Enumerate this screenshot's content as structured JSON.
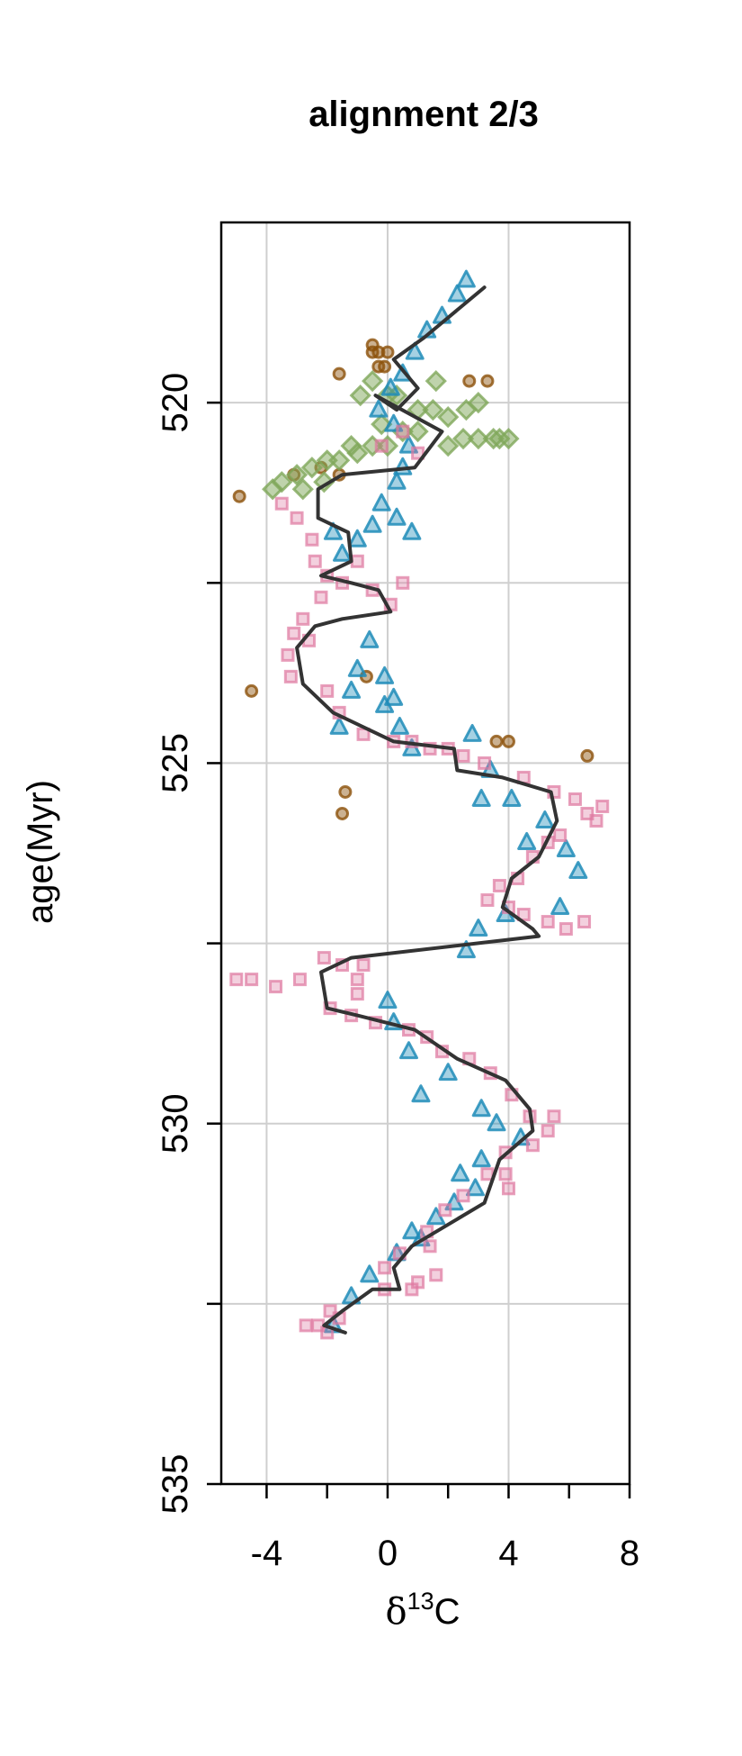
{
  "chart_data": {
    "type": "scatter",
    "title": "alignment 2/3",
    "xlabel": {
      "prefix": "δ",
      "superscript": "13",
      "suffix": "C"
    },
    "ylabel": "age(Myr)",
    "xlim": [
      -5.5,
      8
    ],
    "ylim": [
      517.5,
      535
    ],
    "y_reversed": true,
    "grid": true,
    "x_ticks": [
      -4,
      -2,
      0,
      2,
      4,
      6,
      8
    ],
    "x_tick_labels": [
      {
        "value": -4,
        "label": "-4"
      },
      {
        "value": 0,
        "label": "0"
      },
      {
        "value": 4,
        "label": "4"
      },
      {
        "value": 8,
        "label": "8"
      }
    ],
    "x_grid": [
      -4,
      0,
      4
    ],
    "y_ticks": [
      520,
      522.5,
      525,
      527.5,
      530,
      532.5,
      535
    ],
    "y_tick_labels": [
      {
        "value": 520,
        "label": "520"
      },
      {
        "value": 525,
        "label": "525"
      },
      {
        "value": 530,
        "label": "530"
      },
      {
        "value": 535,
        "label": "535"
      }
    ],
    "y_grid": [
      520,
      522.5,
      525,
      527.5,
      530,
      532.5
    ],
    "series": [
      {
        "marker": "circle",
        "color": "#8c510a",
        "points": [
          [
            -1.6,
            519.6
          ],
          [
            -0.5,
            519.3
          ],
          [
            -0.3,
            519.3
          ],
          [
            0,
            519.3
          ],
          [
            -0.1,
            519.5
          ],
          [
            -0.3,
            519.5
          ],
          [
            -0.5,
            519.2
          ],
          [
            2.7,
            519.7
          ],
          [
            3.3,
            519.7
          ],
          [
            -4.9,
            521.3
          ],
          [
            -3.1,
            521.0
          ],
          [
            -4.5,
            524.0
          ],
          [
            -1.4,
            525.4
          ],
          [
            -1.5,
            525.7
          ],
          [
            3.6,
            524.7
          ],
          [
            4.0,
            524.7
          ],
          [
            6.6,
            524.9
          ],
          [
            -0.7,
            523.8
          ],
          [
            -2.2,
            520.9
          ],
          [
            -1.6,
            521.0
          ]
        ]
      },
      {
        "marker": "diamond",
        "color": "#7fa85a",
        "points": [
          [
            -0.5,
            519.7
          ],
          [
            0,
            519.9
          ],
          [
            1.0,
            520.1
          ],
          [
            1.5,
            520.1
          ],
          [
            2.0,
            520.2
          ],
          [
            2.6,
            520.1
          ],
          [
            3.0,
            520.0
          ],
          [
            -0.2,
            520.3
          ],
          [
            0.5,
            520.4
          ],
          [
            1.0,
            520.4
          ],
          [
            2.0,
            520.6
          ],
          [
            2.5,
            520.5
          ],
          [
            3.0,
            520.5
          ],
          [
            3.5,
            520.5
          ],
          [
            3.7,
            520.5
          ],
          [
            4.0,
            520.5
          ],
          [
            -1.0,
            520.7
          ],
          [
            -0.5,
            520.6
          ],
          [
            0,
            520.6
          ],
          [
            -3.8,
            521.2
          ],
          [
            -3.5,
            521.1
          ],
          [
            -3,
            521.0
          ],
          [
            -2.5,
            520.9
          ],
          [
            -2,
            520.8
          ],
          [
            -1.6,
            520.8
          ],
          [
            -1.2,
            520.6
          ],
          [
            -0.9,
            519.9
          ],
          [
            0.3,
            519.9
          ],
          [
            1.6,
            519.7
          ],
          [
            -2.8,
            521.2
          ],
          [
            -2.1,
            521.1
          ]
        ]
      },
      {
        "marker": "triangle",
        "color": "#1f8cb8",
        "points": [
          [
            2.6,
            518.3
          ],
          [
            2.3,
            518.5
          ],
          [
            1.8,
            518.8
          ],
          [
            1.3,
            519.0
          ],
          [
            0.9,
            519.3
          ],
          [
            0.5,
            519.6
          ],
          [
            0.1,
            519.8
          ],
          [
            -0.3,
            520.1
          ],
          [
            0.2,
            520.3
          ],
          [
            0.7,
            520.6
          ],
          [
            0.5,
            520.9
          ],
          [
            0.3,
            521.1
          ],
          [
            -0.2,
            521.4
          ],
          [
            -0.5,
            521.7
          ],
          [
            -1.0,
            521.9
          ],
          [
            0.3,
            521.6
          ],
          [
            0.8,
            521.8
          ],
          [
            -1.5,
            522.1
          ],
          [
            -1.8,
            521.8
          ],
          [
            -0.6,
            523.3
          ],
          [
            -1.0,
            523.7
          ],
          [
            -1.2,
            524.0
          ],
          [
            -1.6,
            524.5
          ],
          [
            -0.1,
            523.8
          ],
          [
            0.2,
            524.1
          ],
          [
            0.4,
            524.5
          ],
          [
            0.8,
            524.8
          ],
          [
            -0.1,
            524.2
          ],
          [
            2.8,
            524.6
          ],
          [
            3.4,
            525.1
          ],
          [
            4.1,
            525.5
          ],
          [
            3.1,
            525.5
          ],
          [
            5.2,
            525.8
          ],
          [
            5.9,
            526.2
          ],
          [
            6.3,
            526.5
          ],
          [
            4.6,
            526.1
          ],
          [
            3.9,
            527.1
          ],
          [
            3.0,
            527.3
          ],
          [
            2.6,
            527.6
          ],
          [
            5.7,
            527.0
          ],
          [
            0.0,
            528.3
          ],
          [
            0.2,
            528.6
          ],
          [
            0.7,
            529.0
          ],
          [
            1.1,
            529.6
          ],
          [
            2.0,
            529.3
          ],
          [
            3.1,
            529.8
          ],
          [
            3.6,
            530.0
          ],
          [
            4.4,
            530.2
          ],
          [
            3.1,
            530.5
          ],
          [
            2.4,
            530.7
          ],
          [
            2.9,
            530.9
          ],
          [
            2.2,
            531.1
          ],
          [
            1.6,
            531.3
          ],
          [
            1.1,
            531.6
          ],
          [
            -0.6,
            532.1
          ],
          [
            -1.2,
            532.4
          ],
          [
            -1.8,
            532.8
          ],
          [
            0.3,
            531.8
          ],
          [
            0.8,
            531.5
          ]
        ]
      },
      {
        "marker": "square",
        "color": "#de77a0",
        "points": [
          [
            0.5,
            520.4
          ],
          [
            1.0,
            520.7
          ],
          [
            -0.2,
            520.6
          ],
          [
            -3.5,
            521.4
          ],
          [
            -3.0,
            521.6
          ],
          [
            -2.5,
            521.9
          ],
          [
            -1.0,
            522.2
          ],
          [
            -2.4,
            522.2
          ],
          [
            -2.0,
            522.4
          ],
          [
            -1.5,
            522.5
          ],
          [
            -0.5,
            522.6
          ],
          [
            0.1,
            522.8
          ],
          [
            0.5,
            522.5
          ],
          [
            -2.2,
            522.7
          ],
          [
            -2.8,
            523.0
          ],
          [
            -3.1,
            523.2
          ],
          [
            -3.3,
            523.5
          ],
          [
            -3.2,
            523.8
          ],
          [
            -2.6,
            523.3
          ],
          [
            -2.0,
            524.0
          ],
          [
            -1.6,
            524.3
          ],
          [
            -0.8,
            524.6
          ],
          [
            0.2,
            524.7
          ],
          [
            0.8,
            524.7
          ],
          [
            1.4,
            524.8
          ],
          [
            2.0,
            524.8
          ],
          [
            2.5,
            524.9
          ],
          [
            3.2,
            525.0
          ],
          [
            4.5,
            525.2
          ],
          [
            5.5,
            525.4
          ],
          [
            6.2,
            525.5
          ],
          [
            6.6,
            525.7
          ],
          [
            7.1,
            525.6
          ],
          [
            6.9,
            525.8
          ],
          [
            5.7,
            526.0
          ],
          [
            5.3,
            526.1
          ],
          [
            4.8,
            526.3
          ],
          [
            4.3,
            526.6
          ],
          [
            3.3,
            526.9
          ],
          [
            3.7,
            526.7
          ],
          [
            4.0,
            527.0
          ],
          [
            4.5,
            527.1
          ],
          [
            5.3,
            527.2
          ],
          [
            5.9,
            527.3
          ],
          [
            6.5,
            527.2
          ],
          [
            -2.1,
            527.7
          ],
          [
            -1.5,
            527.8
          ],
          [
            -0.8,
            527.8
          ],
          [
            -1.0,
            528.0
          ],
          [
            -1.0,
            528.2
          ],
          [
            -5.0,
            528.0
          ],
          [
            -4.5,
            528.0
          ],
          [
            -3.7,
            528.1
          ],
          [
            -2.9,
            528.0
          ],
          [
            -1.9,
            528.4
          ],
          [
            -1.2,
            528.5
          ],
          [
            -0.4,
            528.6
          ],
          [
            0.7,
            528.7
          ],
          [
            1.3,
            528.8
          ],
          [
            1.8,
            529.0
          ],
          [
            2.7,
            529.1
          ],
          [
            3.4,
            529.3
          ],
          [
            4.1,
            529.6
          ],
          [
            4.7,
            529.9
          ],
          [
            5.5,
            529.9
          ],
          [
            5.3,
            530.1
          ],
          [
            4.8,
            530.3
          ],
          [
            3.9,
            530.4
          ],
          [
            3.3,
            530.7
          ],
          [
            3.9,
            530.7
          ],
          [
            4.0,
            530.9
          ],
          [
            2.5,
            531.0
          ],
          [
            1.9,
            531.2
          ],
          [
            1.3,
            531.5
          ],
          [
            1.4,
            531.7
          ],
          [
            0.4,
            531.8
          ],
          [
            -0.1,
            532.0
          ],
          [
            -0.1,
            532.3
          ],
          [
            0.8,
            532.3
          ],
          [
            1.0,
            532.2
          ],
          [
            1.6,
            532.1
          ],
          [
            -1.6,
            532.7
          ],
          [
            -2.3,
            532.8
          ],
          [
            -2.7,
            532.8
          ],
          [
            -1.9,
            532.6
          ],
          [
            -2.0,
            532.9
          ]
        ]
      },
      {
        "marker": "line",
        "color": "#333333",
        "points": [
          [
            3.2,
            518.4
          ],
          [
            1.2,
            519.1
          ],
          [
            0.2,
            519.4
          ],
          [
            1.0,
            519.8
          ],
          [
            0.3,
            520.1
          ],
          [
            -0.4,
            519.9
          ],
          [
            1.8,
            520.4
          ],
          [
            0.9,
            520.9
          ],
          [
            -1.5,
            521.0
          ],
          [
            -2.3,
            521.2
          ],
          [
            -2.3,
            521.6
          ],
          [
            -1.3,
            521.8
          ],
          [
            -1.2,
            522.2
          ],
          [
            -2.2,
            522.4
          ],
          [
            -1.2,
            522.5
          ],
          [
            -0.3,
            522.6
          ],
          [
            0.1,
            522.9
          ],
          [
            -1.5,
            523.0
          ],
          [
            -2.4,
            523.1
          ],
          [
            -3.0,
            523.4
          ],
          [
            -2.8,
            523.9
          ],
          [
            -1.8,
            524.3
          ],
          [
            0.2,
            524.7
          ],
          [
            2.2,
            524.8
          ],
          [
            2.3,
            525.1
          ],
          [
            3.8,
            525.2
          ],
          [
            5.4,
            525.4
          ],
          [
            5.6,
            525.8
          ],
          [
            5.0,
            526.3
          ],
          [
            4.1,
            526.6
          ],
          [
            3.8,
            527.0
          ],
          [
            4.8,
            527.3
          ],
          [
            5.0,
            527.4
          ],
          [
            -1.2,
            527.7
          ],
          [
            -2.2,
            527.9
          ],
          [
            -2.0,
            528.4
          ],
          [
            -1.0,
            528.5
          ],
          [
            0.9,
            528.7
          ],
          [
            2.3,
            529.1
          ],
          [
            3.9,
            529.4
          ],
          [
            4.7,
            529.8
          ],
          [
            4.8,
            530.1
          ],
          [
            3.7,
            530.5
          ],
          [
            3.2,
            531.1
          ],
          [
            1.6,
            531.5
          ],
          [
            0.8,
            531.7
          ],
          [
            0.2,
            532.0
          ],
          [
            0.4,
            532.3
          ],
          [
            -0.5,
            532.3
          ],
          [
            -1.5,
            532.6
          ],
          [
            -2.1,
            532.8
          ],
          [
            -1.4,
            532.9
          ]
        ]
      }
    ]
  }
}
